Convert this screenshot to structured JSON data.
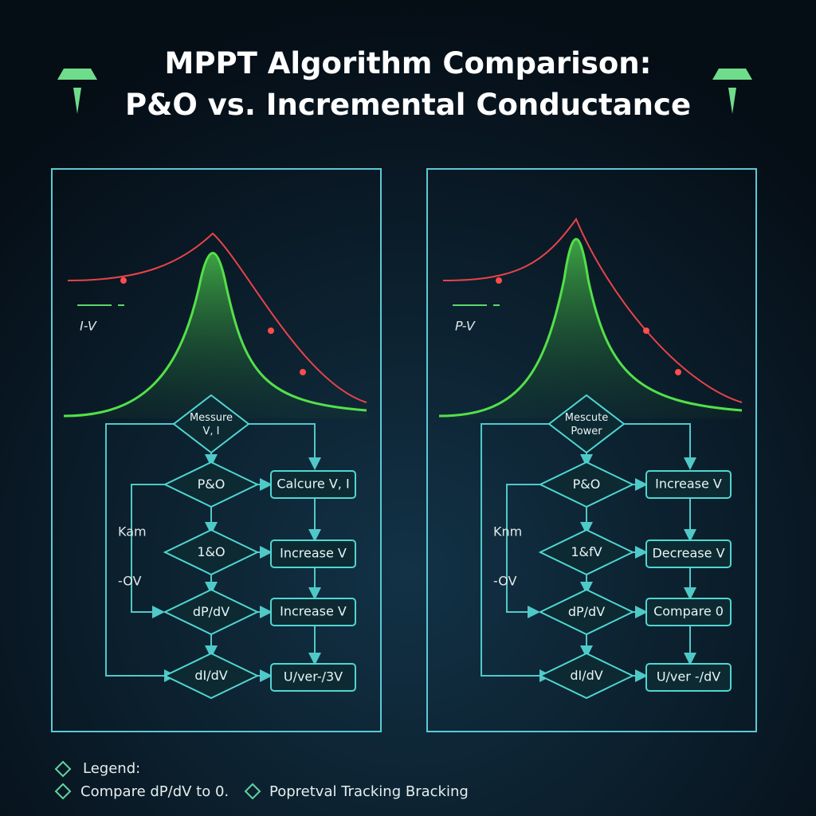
{
  "header": {
    "title": [
      "MPPT Algorithm Comparison:",
      "P&O vs. Incremental Conductance"
    ]
  },
  "panels": [
    {
      "curve_label": "I-V",
      "diamonds": [
        [
          "Messure",
          "V, I"
        ],
        [
          "P&O"
        ],
        [
          "1&O"
        ],
        [
          "dP/dV"
        ],
        [
          "dI/dV"
        ]
      ],
      "boxes": [
        "Calcure V, I",
        "Increase V",
        "Increase V",
        "U/ver-/3V"
      ],
      "side_labels": [
        "Kam",
        "-OV"
      ]
    },
    {
      "curve_label": "P-V",
      "diamonds": [
        [
          "Mescute",
          "Power"
        ],
        [
          "P&O"
        ],
        [
          "1&fV"
        ],
        [
          "dP/dV"
        ],
        [
          "dI/dV"
        ]
      ],
      "boxes": [
        "Increase V",
        "Decrease V",
        "Compare 0",
        "U/ver -/dV"
      ],
      "side_labels": [
        "Knm",
        "-OV"
      ]
    }
  ],
  "legend": {
    "title": "Legend:",
    "items": [
      "Compare dP/dV to 0.",
      "Popretval Tracking Bracking"
    ]
  }
}
